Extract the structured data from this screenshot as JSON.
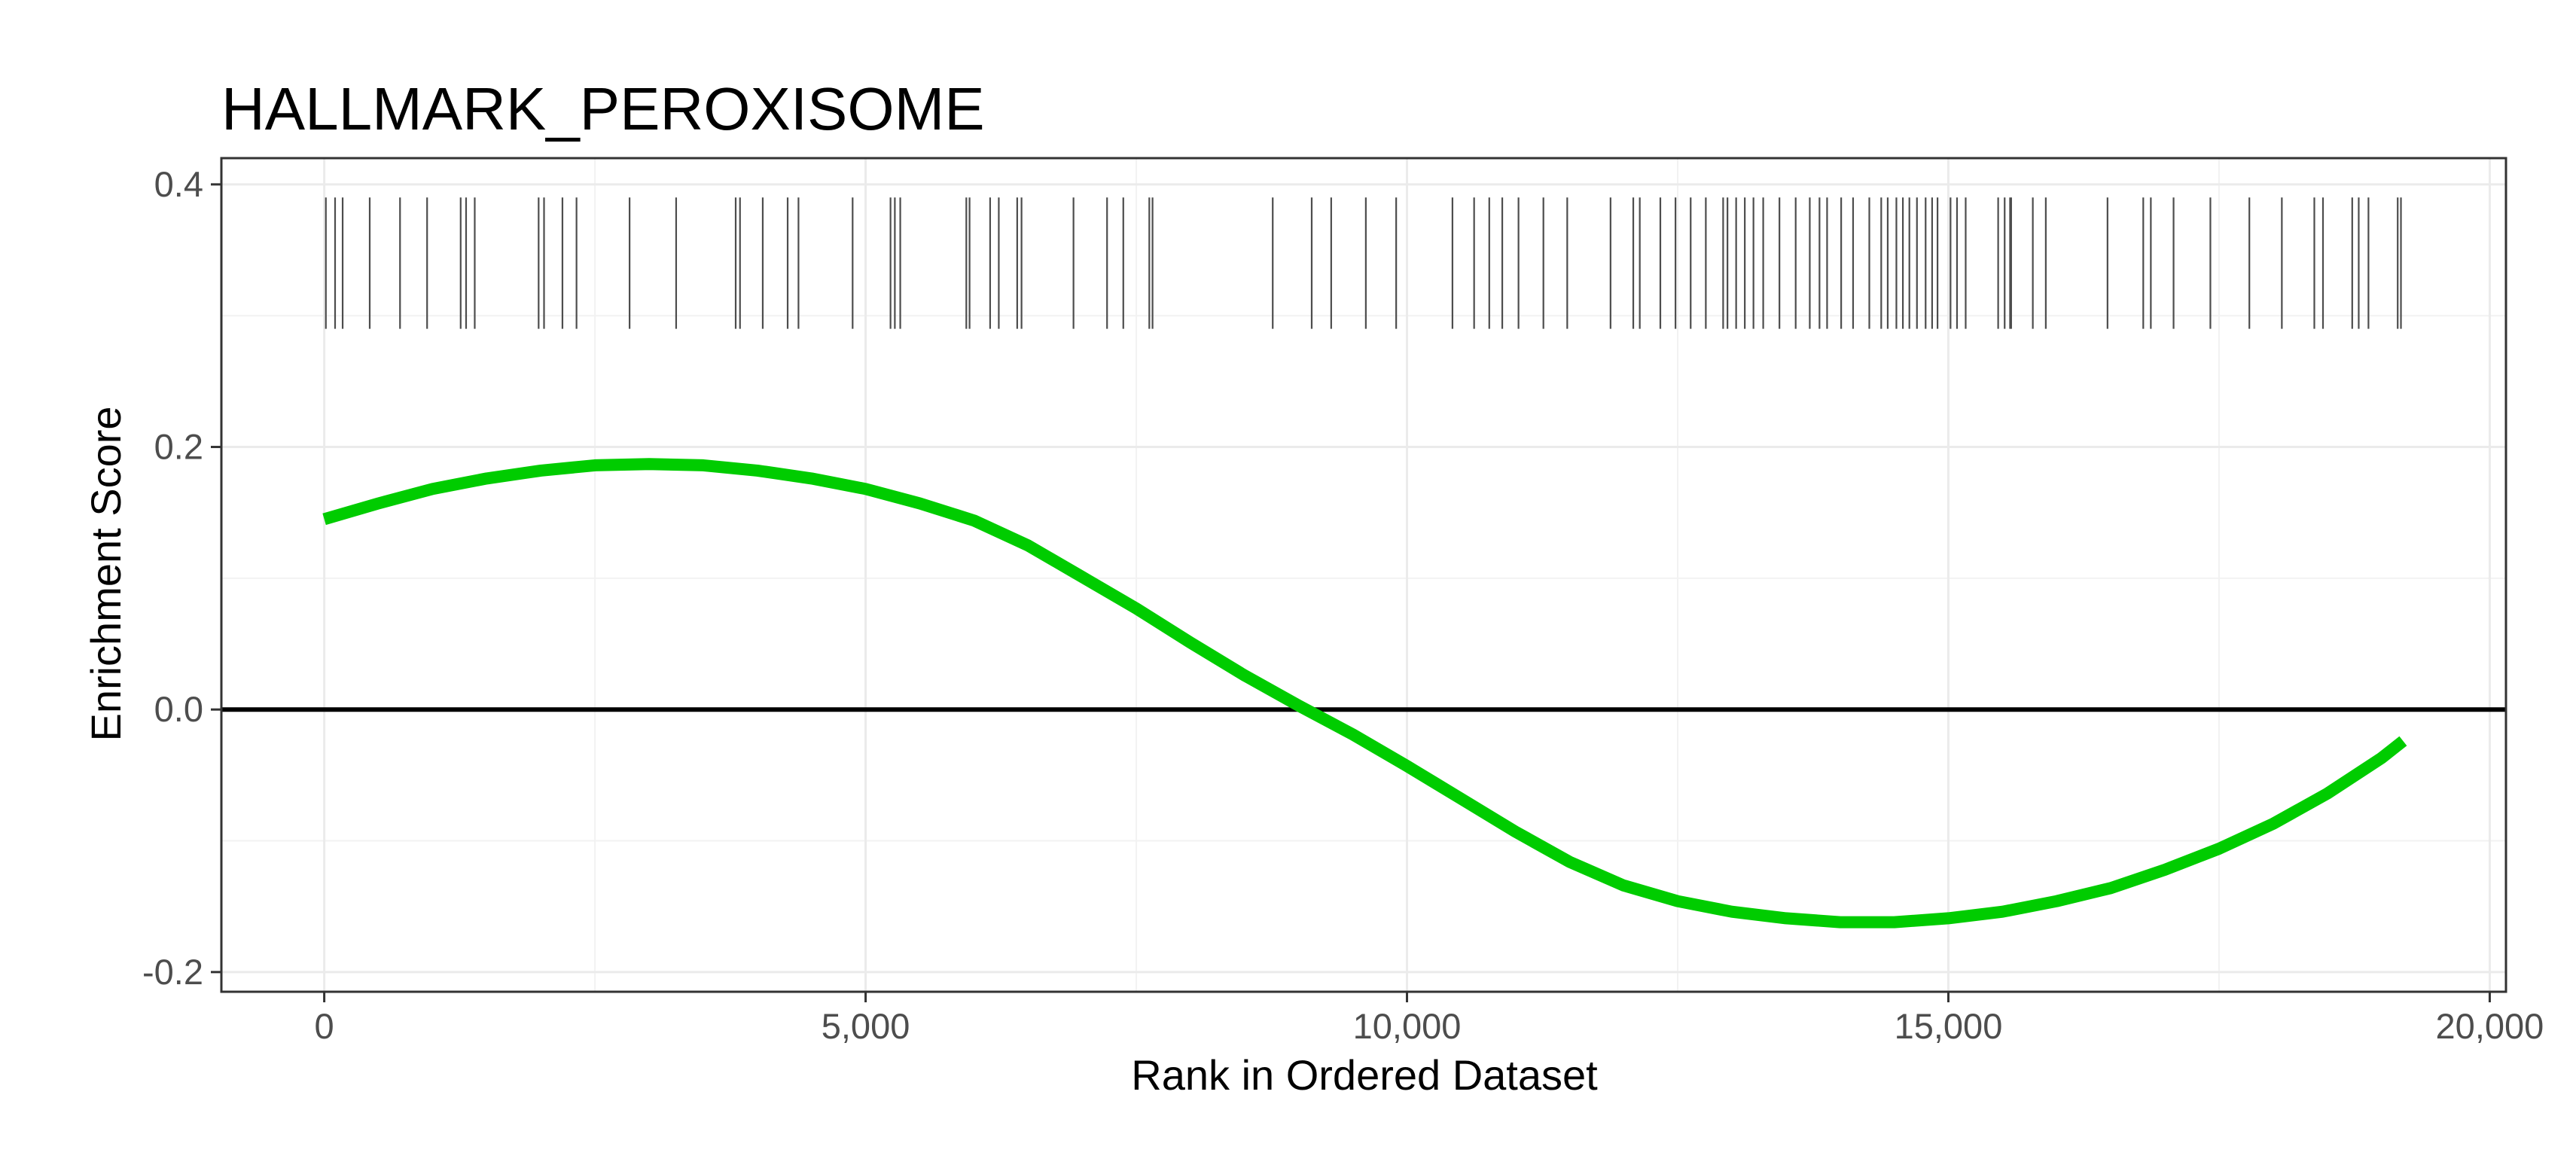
{
  "chart_data": {
    "type": "line",
    "title": "HALLMARK_PEROXISOME",
    "xlabel": "Rank in Ordered Dataset",
    "ylabel": "Enrichment Score",
    "xlim": [
      -950,
      20150
    ],
    "ylim": [
      -0.215,
      0.42
    ],
    "x_ticks": [
      0,
      5000,
      10000,
      15000,
      20000
    ],
    "x_tick_labels": [
      "0",
      "5,000",
      "10,000",
      "15,000",
      "20,000"
    ],
    "y_ticks": [
      -0.2,
      0.0,
      0.2,
      0.4
    ],
    "y_tick_labels": [
      "-0.2",
      "0.0",
      "0.2",
      "0.4"
    ],
    "grid": true,
    "legend": "none",
    "colors": {
      "curve": "#00cc00",
      "hits": "#4d4d4d",
      "zero_line": "#000000"
    },
    "hit_band_y": [
      0.29,
      0.39
    ],
    "hits": [
      15,
      100,
      170,
      420,
      700,
      950,
      1260,
      1310,
      1390,
      1980,
      2030,
      2200,
      2330,
      2820,
      3250,
      3800,
      3840,
      4050,
      4280,
      4380,
      4880,
      5230,
      5270,
      5320,
      5930,
      5960,
      6150,
      6230,
      6400,
      6440,
      6920,
      7230,
      7380,
      7620,
      7650,
      8760,
      9120,
      9300,
      9620,
      9900,
      10420,
      10620,
      10760,
      10880,
      11030,
      11260,
      11480,
      11880,
      12090,
      12150,
      12340,
      12480,
      12620,
      12760,
      12920,
      12960,
      13040,
      13120,
      13200,
      13290,
      13440,
      13590,
      13720,
      13810,
      13880,
      14010,
      14120,
      14270,
      14380,
      14440,
      14520,
      14580,
      14640,
      14710,
      14790,
      14850,
      14900,
      15020,
      15080,
      15160,
      15460,
      15520,
      15570,
      15580,
      15780,
      15900,
      16470,
      16800,
      16870,
      17080,
      17420,
      17780,
      18080,
      18380,
      18460,
      18730,
      18790,
      18880,
      19150,
      19180
    ],
    "series": [
      {
        "x": [
          0,
          500,
          1000,
          1500,
          2000,
          2500,
          3000,
          3500,
          4000,
          4500,
          5000,
          5500,
          6000,
          6500,
          7000,
          7500,
          8000,
          8500,
          9000,
          9500,
          10000,
          10500,
          11000,
          11500,
          12000,
          12500,
          13000,
          13500,
          14000,
          14500,
          15000,
          15500,
          16000,
          16500,
          17000,
          17500,
          18000,
          18500,
          19000,
          19200
        ],
        "values": [
          0.145,
          0.157,
          0.168,
          0.176,
          0.182,
          0.186,
          0.187,
          0.186,
          0.182,
          0.176,
          0.168,
          0.157,
          0.144,
          0.125,
          0.101,
          0.077,
          0.051,
          0.026,
          0.003,
          -0.019,
          -0.043,
          -0.068,
          -0.093,
          -0.116,
          -0.134,
          -0.146,
          -0.154,
          -0.159,
          -0.162,
          -0.162,
          -0.159,
          -0.154,
          -0.146,
          -0.136,
          -0.122,
          -0.106,
          -0.087,
          -0.064,
          -0.037,
          -0.024
        ]
      }
    ]
  }
}
